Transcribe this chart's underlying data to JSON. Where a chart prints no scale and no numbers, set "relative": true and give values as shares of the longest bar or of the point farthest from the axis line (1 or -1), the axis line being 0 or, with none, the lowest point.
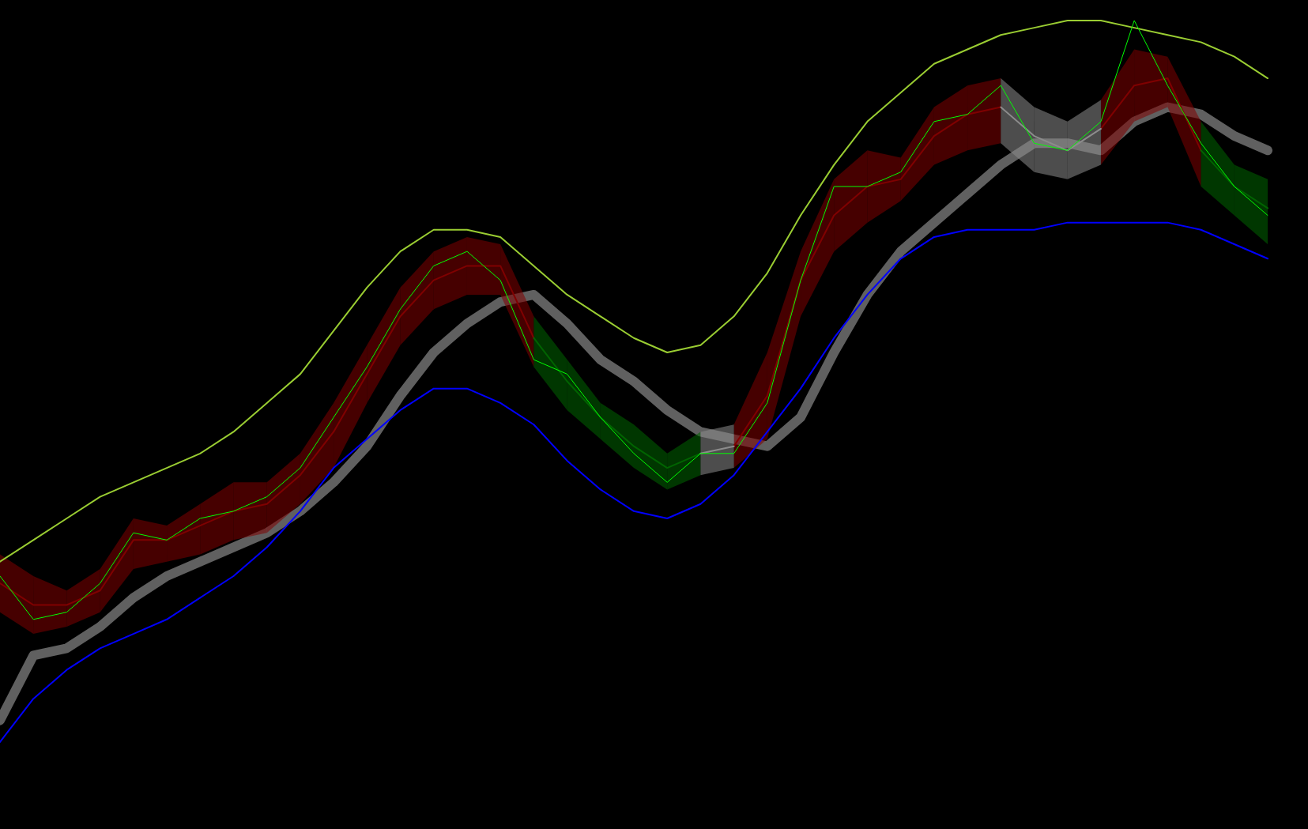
{
  "chart_data": {
    "type": "line",
    "relative": true,
    "grid": false,
    "tick_labels": false,
    "categories": [
      null,
      null,
      null,
      null,
      null,
      null,
      null,
      null,
      null,
      null,
      null,
      null,
      null,
      null,
      null,
      null,
      null,
      null,
      null,
      null,
      null,
      null,
      null,
      null,
      null,
      null,
      null,
      null,
      null,
      null,
      null,
      null,
      null,
      null,
      null,
      null,
      null,
      null,
      null
    ],
    "series": [
      {
        "color": "#9acd32",
        "values": [
          0.25,
          0.28,
          0.31,
          0.34,
          0.36,
          0.38,
          0.4,
          0.43,
          0.47,
          0.51,
          0.57,
          0.63,
          0.68,
          0.71,
          0.71,
          0.7,
          0.66,
          0.62,
          0.59,
          0.56,
          0.54,
          0.55,
          0.59,
          0.65,
          0.73,
          0.8,
          0.86,
          0.9,
          0.94,
          0.96,
          0.98,
          0.99,
          1.0,
          1.0,
          0.99,
          0.98,
          0.97,
          0.95,
          0.92
        ]
      },
      {
        "color": "#0000ff",
        "values": [
          0,
          0.06,
          0.1,
          0.13,
          0.15,
          0.17,
          0.2,
          0.23,
          0.27,
          0.32,
          0.38,
          0.42,
          0.46,
          0.49,
          0.49,
          0.47,
          0.44,
          0.39,
          0.35,
          0.32,
          0.31,
          0.33,
          0.37,
          0.43,
          0.49,
          0.56,
          0.62,
          0.67,
          0.7,
          0.71,
          0.71,
          0.71,
          0.72,
          0.72,
          0.72,
          0.72,
          0.71,
          0.69,
          0.67
        ]
      },
      {
        "color": "#606060",
        "values": [
          0.03,
          0.12,
          0.13,
          0.16,
          0.2,
          0.23,
          0.25,
          0.27,
          0.29,
          0.32,
          0.36,
          0.41,
          0.48,
          0.54,
          0.58,
          0.61,
          0.62,
          0.58,
          0.53,
          0.5,
          0.46,
          0.43,
          0.42,
          0.41,
          0.45,
          0.54,
          0.62,
          0.68,
          0.72,
          0.76,
          0.8,
          0.83,
          0.83,
          0.82,
          0.86,
          0.88,
          0.87,
          0.84,
          0.82
        ]
      },
      {
        "color": "#800000",
        "values": [
          0.22,
          0.19,
          0.19,
          0.21,
          0.28,
          0.28,
          0.3,
          0.32,
          0.33,
          0.37,
          0.43,
          0.51,
          0.59,
          0.64,
          0.66,
          0.66,
          0.56,
          null,
          null,
          null,
          null,
          null,
          0.41,
          0.48,
          0.64,
          0.73,
          0.77,
          0.78,
          0.84,
          0.87,
          0.88,
          null,
          null,
          0.85,
          0.91,
          0.92,
          0.82,
          null,
          null
        ],
        "upper": [
          0.26,
          0.23,
          0.21,
          0.24,
          0.31,
          0.3,
          0.33,
          0.36,
          0.36,
          0.4,
          0.47,
          0.55,
          0.63,
          0.68,
          0.7,
          0.69,
          0.59,
          null,
          null,
          null,
          null,
          null,
          0.44,
          0.54,
          0.68,
          0.78,
          0.82,
          0.81,
          0.88,
          0.91,
          0.92,
          null,
          null,
          0.89,
          0.96,
          0.95,
          0.86,
          null,
          null
        ],
        "lower": [
          0.18,
          0.15,
          0.16,
          0.18,
          0.24,
          0.25,
          0.26,
          0.28,
          0.29,
          0.33,
          0.38,
          0.47,
          0.55,
          0.6,
          0.62,
          0.62,
          0.52,
          null,
          null,
          null,
          null,
          null,
          0.38,
          0.42,
          0.59,
          0.68,
          0.72,
          0.75,
          0.8,
          0.82,
          0.83,
          null,
          null,
          0.8,
          0.86,
          0.88,
          0.77,
          null,
          null
        ]
      },
      {
        "color": "#006400",
        "values": [
          null,
          null,
          null,
          null,
          null,
          null,
          null,
          null,
          null,
          null,
          null,
          null,
          null,
          null,
          null,
          null,
          0.56,
          0.5,
          0.45,
          0.41,
          0.38,
          0.4,
          null,
          null,
          null,
          null,
          null,
          null,
          null,
          null,
          null,
          null,
          null,
          null,
          null,
          null,
          0.82,
          0.77,
          0.74
        ],
        "upper": [
          null,
          null,
          null,
          null,
          null,
          null,
          null,
          null,
          null,
          null,
          null,
          null,
          null,
          null,
          null,
          null,
          0.59,
          0.53,
          0.47,
          0.44,
          0.4,
          0.43,
          null,
          null,
          null,
          null,
          null,
          null,
          null,
          null,
          null,
          null,
          null,
          null,
          null,
          null,
          0.86,
          0.8,
          0.78
        ],
        "lower": [
          null,
          null,
          null,
          null,
          null,
          null,
          null,
          null,
          null,
          null,
          null,
          null,
          null,
          null,
          null,
          null,
          0.52,
          0.46,
          0.42,
          0.38,
          0.35,
          0.37,
          null,
          null,
          null,
          null,
          null,
          null,
          null,
          null,
          null,
          null,
          null,
          null,
          null,
          null,
          0.77,
          0.73,
          0.69
        ]
      },
      {
        "color": "#8c8c8c",
        "values": [
          null,
          null,
          null,
          null,
          null,
          null,
          null,
          null,
          null,
          null,
          null,
          null,
          null,
          null,
          null,
          null,
          null,
          null,
          null,
          null,
          null,
          0.4,
          0.41,
          null,
          null,
          null,
          null,
          null,
          null,
          null,
          0.88,
          0.84,
          0.82,
          0.85,
          null,
          null,
          null,
          null,
          null
        ],
        "upper": [
          null,
          null,
          null,
          null,
          null,
          null,
          null,
          null,
          null,
          null,
          null,
          null,
          null,
          null,
          null,
          null,
          null,
          null,
          null,
          null,
          null,
          0.43,
          0.44,
          null,
          null,
          null,
          null,
          null,
          null,
          null,
          0.92,
          0.88,
          0.86,
          0.89,
          null,
          null,
          null,
          null,
          null
        ],
        "lower": [
          null,
          null,
          null,
          null,
          null,
          null,
          null,
          null,
          null,
          null,
          null,
          null,
          null,
          null,
          null,
          null,
          null,
          null,
          null,
          null,
          null,
          0.37,
          0.38,
          null,
          null,
          null,
          null,
          null,
          null,
          null,
          0.83,
          0.79,
          0.78,
          0.8,
          null,
          null,
          null,
          null,
          null
        ]
      },
      {
        "color": "#00ff00",
        "values": [
          0.23,
          0.17,
          0.18,
          0.22,
          0.29,
          0.28,
          0.31,
          0.32,
          0.34,
          0.38,
          0.45,
          0.52,
          0.6,
          0.66,
          0.68,
          0.64,
          0.53,
          0.51,
          0.45,
          0.4,
          0.36,
          0.4,
          0.4,
          0.47,
          0.64,
          0.77,
          0.77,
          0.79,
          0.86,
          0.87,
          0.91,
          0.83,
          0.82,
          0.86,
          1.0,
          0.91,
          0.83,
          0.77,
          0.73
        ]
      }
    ]
  }
}
